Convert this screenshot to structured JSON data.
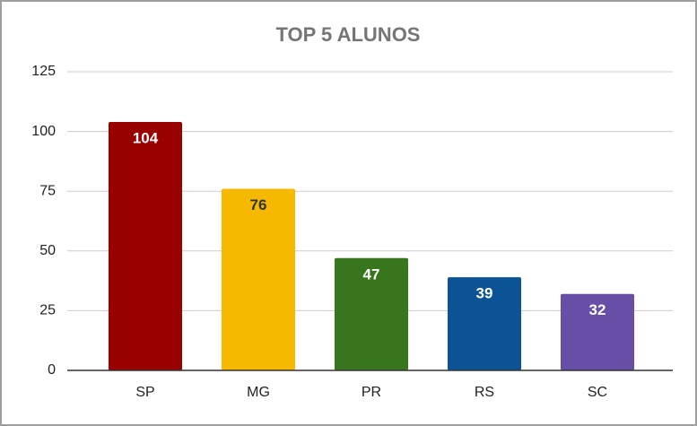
{
  "chart_data": {
    "type": "bar",
    "title": "TOP 5 ALUNOS",
    "categories": [
      "SP",
      "MG",
      "PR",
      "RS",
      "SC"
    ],
    "values": [
      104,
      76,
      47,
      39,
      32
    ],
    "colors": [
      "#990000",
      "#f6b900",
      "#38761d",
      "#0b5394",
      "#674ea7"
    ],
    "ylim": [
      0,
      125
    ],
    "yticks": [
      0,
      25,
      50,
      75,
      100,
      125
    ],
    "grid": true
  }
}
